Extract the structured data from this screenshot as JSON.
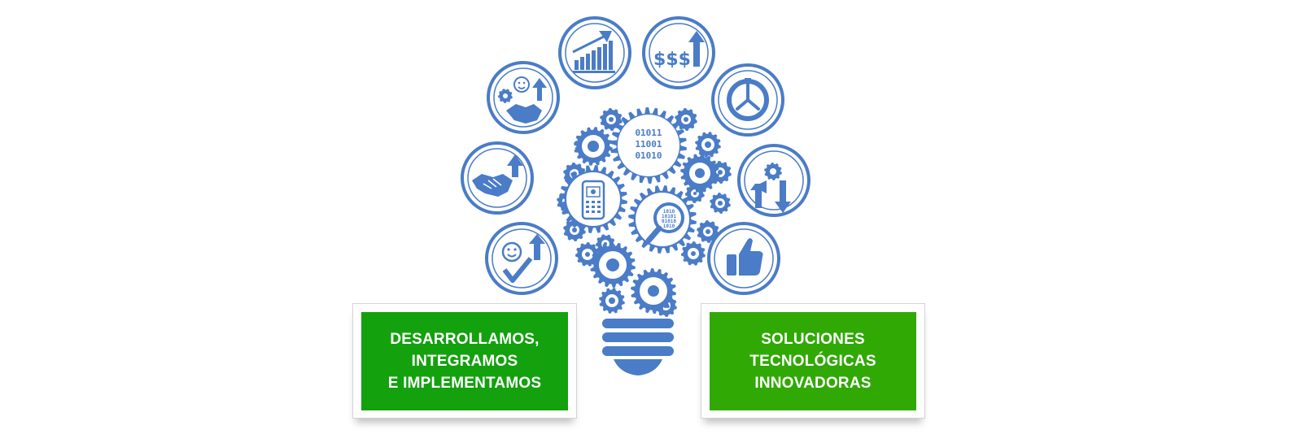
{
  "colors": {
    "icon_blue": "#4a7cc7",
    "green_left": "#13a10e",
    "green_right": "#30a904",
    "card_border": "#d4d4d4"
  },
  "bulb": {
    "binary_block": [
      "01011",
      "11001",
      "01010"
    ],
    "magnifier_bits": [
      "1010",
      "10101",
      "01010",
      "1010"
    ]
  },
  "circle_icons": [
    {
      "icon": "bar-chart-growth-icon"
    },
    {
      "icon": "dollar-increase-icon",
      "text": "$$$"
    },
    {
      "icon": "clock-icon"
    },
    {
      "icon": "gear-direction-arrows-icon"
    },
    {
      "icon": "thumbs-up-icon"
    },
    {
      "icon": "smile-check-growth-icon"
    },
    {
      "icon": "handshake-growth-icon"
    },
    {
      "icon": "gear-smile-handshake-icon"
    }
  ],
  "left_panel": {
    "line1": "DESARROLLAMOS,",
    "line2": "INTEGRAMOS",
    "line3": "E IMPLEMENTAMOS"
  },
  "right_panel": {
    "line1": "SOLUCIONES",
    "line2": "TECNOLÓGICAS",
    "line3": "INNOVADORAS"
  }
}
